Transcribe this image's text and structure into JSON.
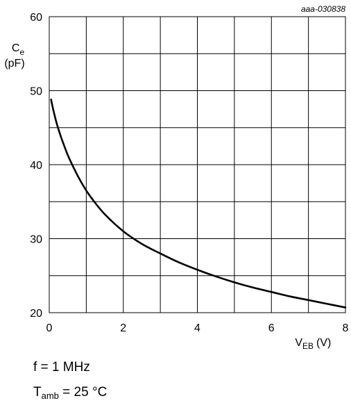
{
  "chart_data": {
    "type": "line",
    "reference": "aaa-030838",
    "ylabel": {
      "symbol": "C",
      "sub": "e",
      "unit": "(pF)"
    },
    "xlabel": {
      "symbol": "V",
      "sub": "EB",
      "unit": "(V)"
    },
    "xlim": [
      0,
      8
    ],
    "ylim": [
      20,
      60
    ],
    "x_ticks": [
      0,
      2,
      4,
      6,
      8
    ],
    "y_ticks": [
      20,
      30,
      40,
      50,
      60
    ],
    "grid": true,
    "series": [
      {
        "x": [
          0.05,
          0.1,
          0.2,
          0.3,
          0.4,
          0.5,
          0.6,
          0.8,
          1.0,
          1.2,
          1.5,
          2.0,
          2.5,
          3.0,
          3.5,
          4.0,
          4.5,
          5.0,
          5.5,
          6.0,
          6.5,
          7.0,
          7.5,
          8.0
        ],
        "y": [
          48.8,
          47.6,
          45.6,
          44.0,
          42.6,
          41.3,
          40.2,
          38.2,
          36.5,
          35.1,
          33.3,
          31.0,
          29.3,
          28.0,
          26.8,
          25.8,
          24.9,
          24.1,
          23.4,
          22.8,
          22.2,
          21.7,
          21.2,
          20.7
        ]
      }
    ]
  },
  "conditions": {
    "freq": "f = 1 MHz",
    "tamb_symbol": "T",
    "tamb_sub": "amb",
    "tamb_value": " = 25 °C"
  }
}
